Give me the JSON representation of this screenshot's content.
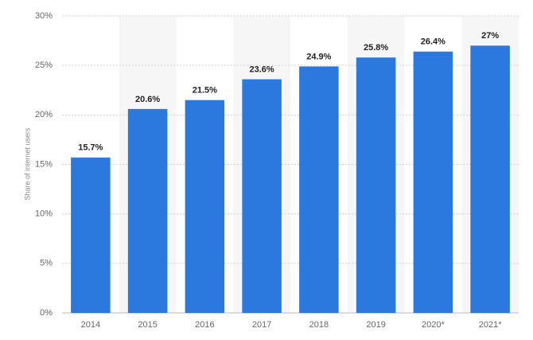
{
  "chart_data": {
    "type": "bar",
    "y_label": "Share of internet users",
    "categories": [
      "2014",
      "2015",
      "2016",
      "2017",
      "2018",
      "2019",
      "2020*",
      "2021*"
    ],
    "values": [
      15.7,
      20.6,
      21.5,
      23.6,
      24.9,
      25.8,
      26.4,
      27
    ],
    "value_labels": [
      "15.7%",
      "20.6%",
      "21.5%",
      "23.6%",
      "24.9%",
      "25.8%",
      "26.4%",
      "27%"
    ],
    "color": "#2b78de",
    "ylim": [
      0,
      30
    ],
    "yticks": [
      {
        "value": 0,
        "label": "0%"
      },
      {
        "value": 5,
        "label": "5%"
      },
      {
        "value": 10,
        "label": "10%"
      },
      {
        "value": 15,
        "label": "15%"
      },
      {
        "value": 20,
        "label": "20%"
      },
      {
        "value": 25,
        "label": "25%"
      },
      {
        "value": 30,
        "label": "30%"
      }
    ],
    "grid": true
  }
}
